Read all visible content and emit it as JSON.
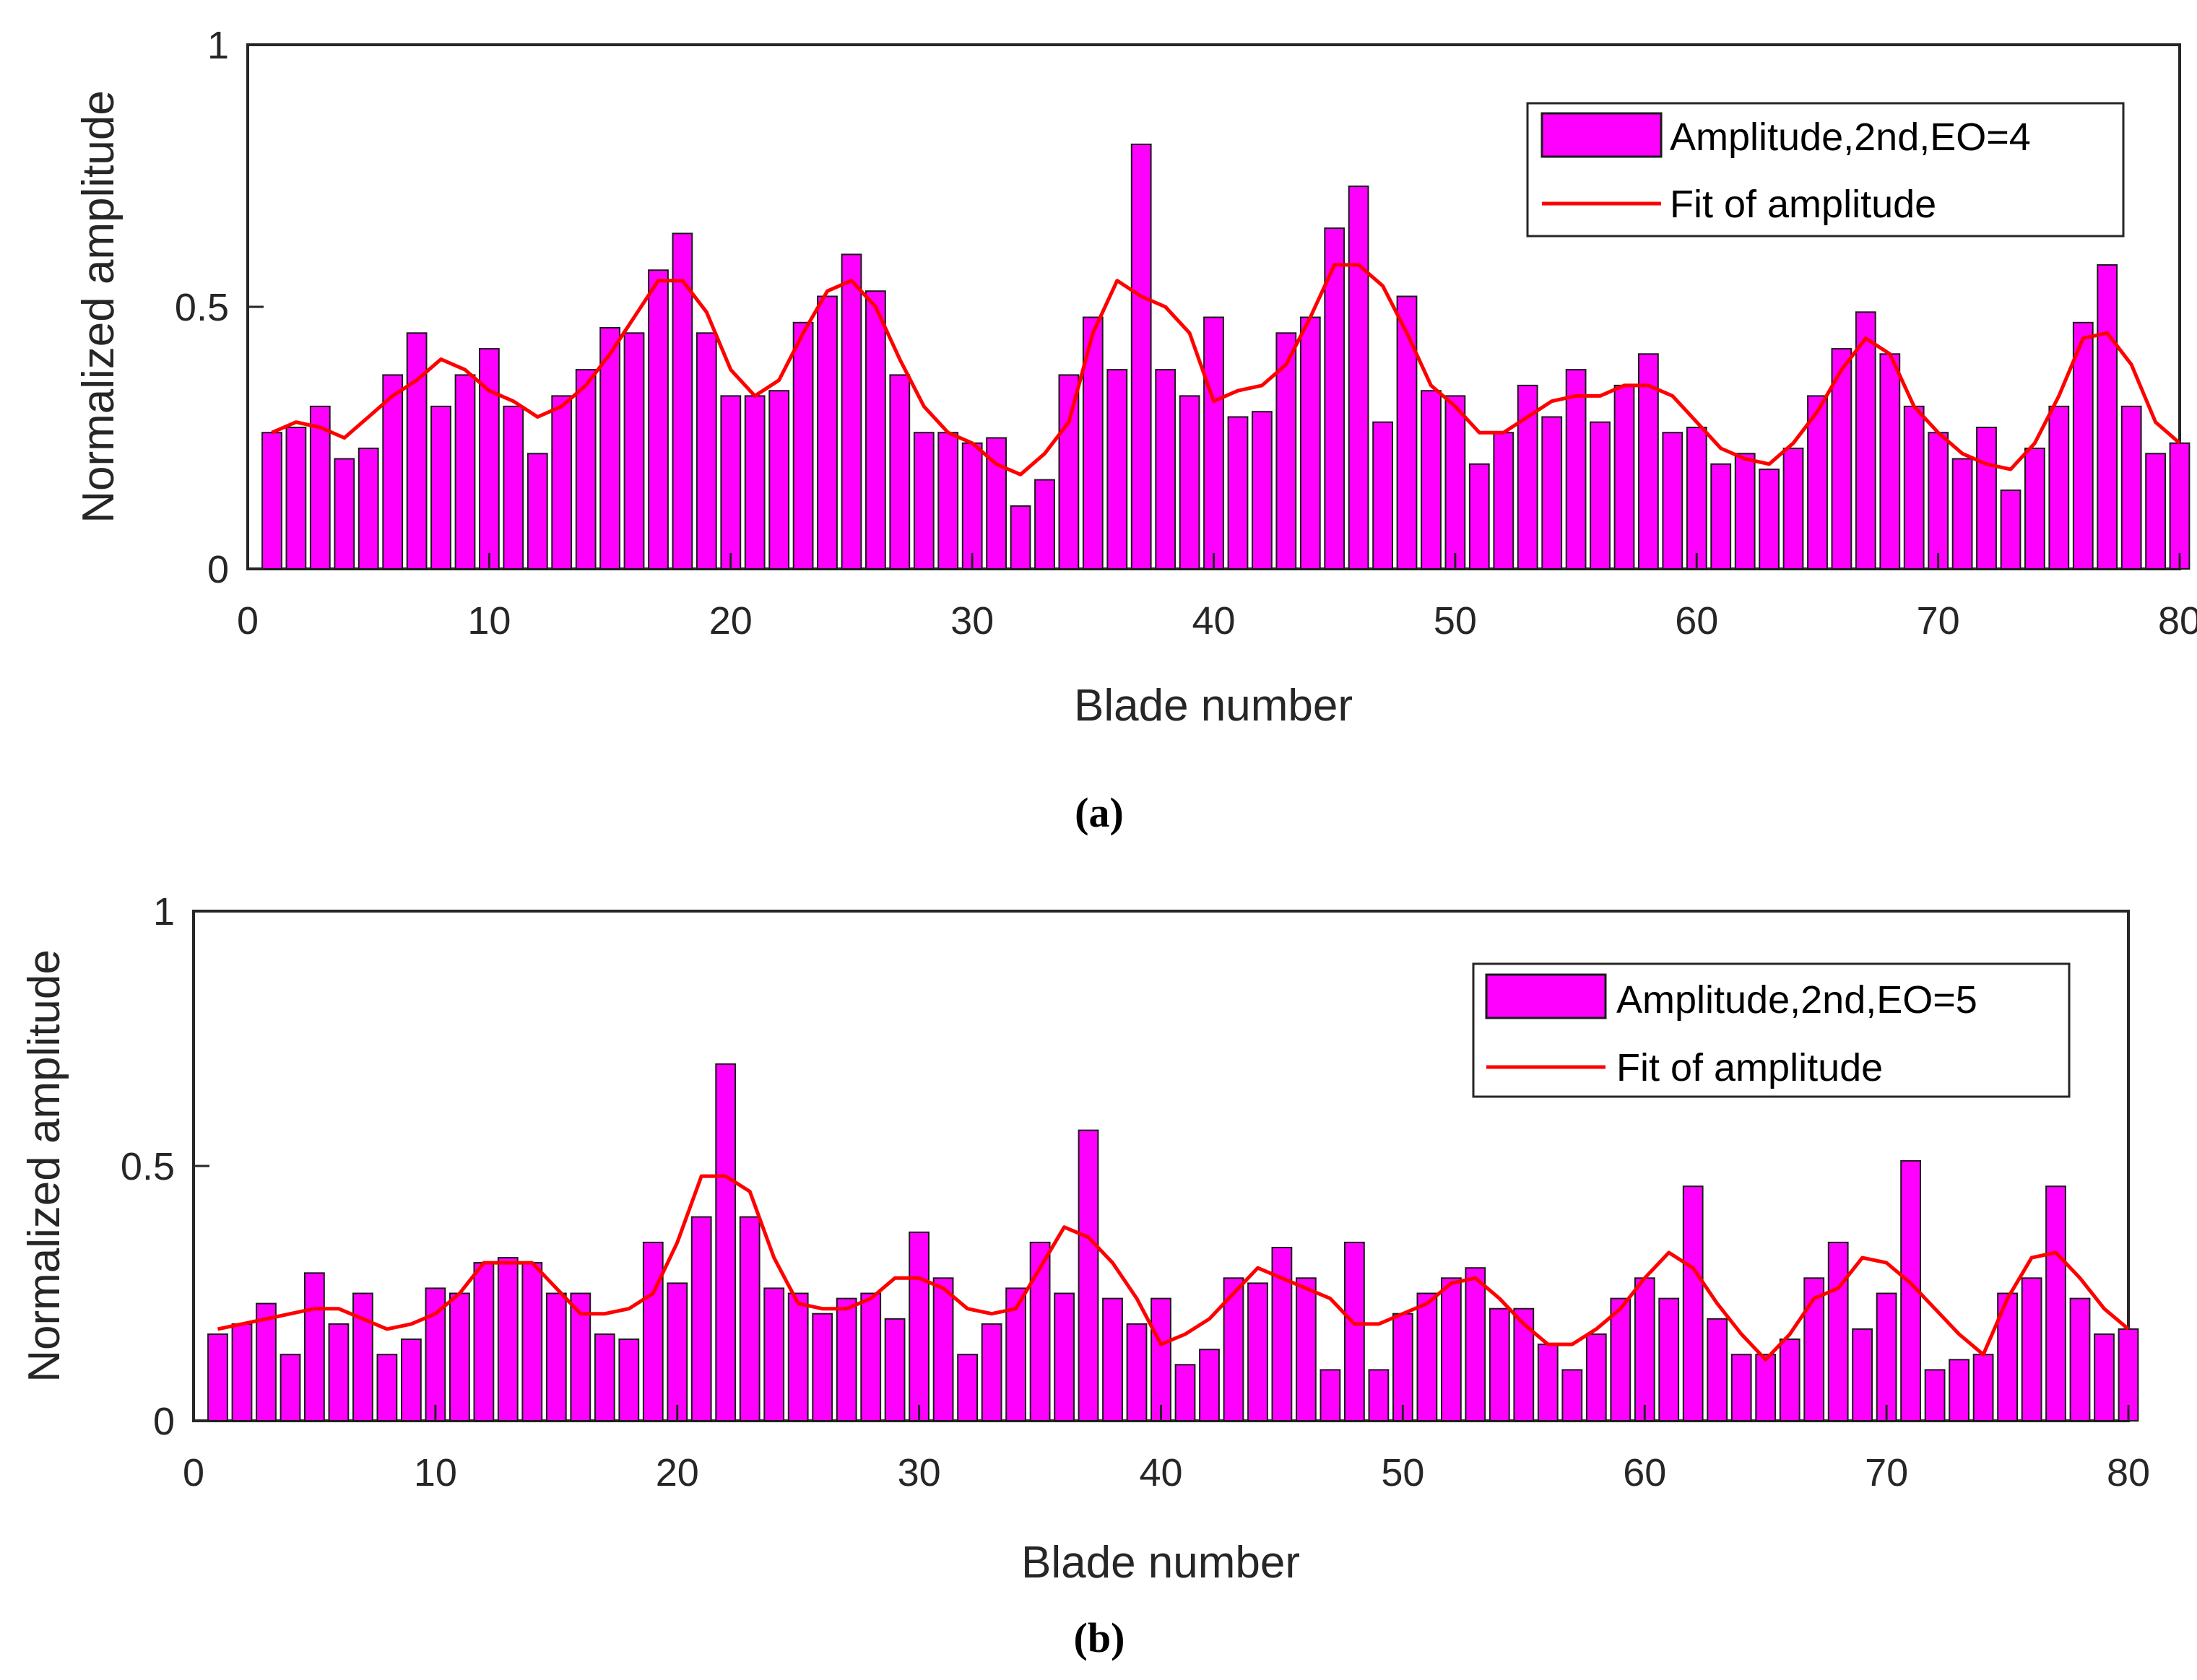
{
  "colors": {
    "bar_fill": "#ff00ff",
    "bar_edge": "#1a1a1a",
    "fit_line": "#ff0000",
    "axes": "#262626",
    "grid": "#e6e6e6"
  },
  "chart_data": [
    {
      "type": "bar",
      "panel": "(a)",
      "xlabel": "Blade number",
      "ylabel": "Normalized amplitude",
      "xlim": [
        0,
        80
      ],
      "ylim": [
        0,
        1
      ],
      "xticks": [
        "0",
        "10",
        "20",
        "30",
        "40",
        "50",
        "60",
        "70",
        "80"
      ],
      "yticks": [
        "0",
        "0.5",
        "1"
      ],
      "legend": {
        "bar_label": "Amplitude,2nd,EO=4",
        "line_label": "Fit of amplitude",
        "placement": "top-right"
      },
      "x": [
        1,
        2,
        3,
        4,
        5,
        6,
        7,
        8,
        9,
        10,
        11,
        12,
        13,
        14,
        15,
        16,
        17,
        18,
        19,
        20,
        21,
        22,
        23,
        24,
        25,
        26,
        27,
        28,
        29,
        30,
        31,
        32,
        33,
        34,
        35,
        36,
        37,
        38,
        39,
        40,
        41,
        42,
        43,
        44,
        45,
        46,
        47,
        48,
        49,
        50,
        51,
        52,
        53,
        54,
        55,
        56,
        57,
        58,
        59,
        60,
        61,
        62,
        63,
        64,
        65,
        66,
        67,
        68,
        69,
        70,
        71,
        72,
        73,
        74,
        75,
        76,
        77,
        78,
        79,
        80
      ],
      "series": [
        {
          "name": "Amplitude,2nd,EO=4",
          "kind": "bar",
          "values": [
            0.26,
            0.27,
            0.31,
            0.21,
            0.23,
            0.37,
            0.45,
            0.31,
            0.37,
            0.42,
            0.31,
            0.22,
            0.33,
            0.38,
            0.46,
            0.45,
            0.57,
            0.64,
            0.45,
            0.33,
            0.33,
            0.34,
            0.47,
            0.52,
            0.6,
            0.53,
            0.37,
            0.26,
            0.26,
            0.24,
            0.25,
            0.12,
            0.17,
            0.37,
            0.48,
            0.38,
            0.81,
            0.38,
            0.33,
            0.48,
            0.29,
            0.3,
            0.45,
            0.48,
            0.65,
            0.73,
            0.28,
            0.52,
            0.34,
            0.33,
            0.2,
            0.26,
            0.35,
            0.29,
            0.38,
            0.28,
            0.35,
            0.41,
            0.26,
            0.27,
            0.2,
            0.22,
            0.19,
            0.23,
            0.33,
            0.42,
            0.49,
            0.41,
            0.31,
            0.26,
            0.21,
            0.27,
            0.15,
            0.23,
            0.31,
            0.47,
            0.58,
            0.31,
            0.22,
            0.24
          ]
        },
        {
          "name": "Fit of amplitude",
          "kind": "line",
          "values": [
            0.26,
            0.28,
            0.27,
            0.25,
            0.29,
            0.33,
            0.36,
            0.4,
            0.38,
            0.34,
            0.32,
            0.29,
            0.31,
            0.35,
            0.41,
            0.48,
            0.55,
            0.55,
            0.49,
            0.38,
            0.33,
            0.36,
            0.45,
            0.53,
            0.55,
            0.5,
            0.4,
            0.31,
            0.26,
            0.24,
            0.2,
            0.18,
            0.22,
            0.28,
            0.45,
            0.55,
            0.52,
            0.5,
            0.45,
            0.32,
            0.34,
            0.35,
            0.39,
            0.48,
            0.58,
            0.58,
            0.54,
            0.45,
            0.35,
            0.31,
            0.26,
            0.26,
            0.29,
            0.32,
            0.33,
            0.33,
            0.35,
            0.35,
            0.33,
            0.28,
            0.23,
            0.21,
            0.2,
            0.24,
            0.3,
            0.38,
            0.44,
            0.41,
            0.31,
            0.26,
            0.22,
            0.2,
            0.19,
            0.24,
            0.33,
            0.44,
            0.45,
            0.39,
            0.28,
            0.24
          ]
        }
      ]
    },
    {
      "type": "bar",
      "panel": "(b)",
      "xlabel": "Blade number",
      "ylabel": "Normalized amplitude",
      "xlim": [
        0,
        80
      ],
      "ylim": [
        0,
        1
      ],
      "xticks": [
        "0",
        "10",
        "20",
        "30",
        "40",
        "50",
        "60",
        "70",
        "80"
      ],
      "yticks": [
        "0",
        "0.5",
        "1"
      ],
      "legend": {
        "bar_label": "Amplitude,2nd,EO=5",
        "line_label": "Fit of amplitude",
        "placement": "top-right"
      },
      "x": [
        1,
        2,
        3,
        4,
        5,
        6,
        7,
        8,
        9,
        10,
        11,
        12,
        13,
        14,
        15,
        16,
        17,
        18,
        19,
        20,
        21,
        22,
        23,
        24,
        25,
        26,
        27,
        28,
        29,
        30,
        31,
        32,
        33,
        34,
        35,
        36,
        37,
        38,
        39,
        40,
        41,
        42,
        43,
        44,
        45,
        46,
        47,
        48,
        49,
        50,
        51,
        52,
        53,
        54,
        55,
        56,
        57,
        58,
        59,
        60,
        61,
        62,
        63,
        64,
        65,
        66,
        67,
        68,
        69,
        70,
        71,
        72,
        73,
        74,
        75,
        76,
        77,
        78,
        79,
        80
      ],
      "series": [
        {
          "name": "Amplitude,2nd,EO=5",
          "kind": "bar",
          "values": [
            0.17,
            0.19,
            0.23,
            0.13,
            0.29,
            0.19,
            0.25,
            0.13,
            0.16,
            0.26,
            0.25,
            0.31,
            0.32,
            0.31,
            0.25,
            0.25,
            0.17,
            0.16,
            0.35,
            0.27,
            0.4,
            0.7,
            0.4,
            0.26,
            0.25,
            0.21,
            0.24,
            0.25,
            0.2,
            0.37,
            0.28,
            0.13,
            0.19,
            0.26,
            0.35,
            0.25,
            0.57,
            0.24,
            0.19,
            0.24,
            0.11,
            0.14,
            0.28,
            0.27,
            0.34,
            0.28,
            0.1,
            0.35,
            0.1,
            0.21,
            0.25,
            0.28,
            0.3,
            0.22,
            0.22,
            0.15,
            0.1,
            0.17,
            0.24,
            0.28,
            0.24,
            0.46,
            0.2,
            0.13,
            0.13,
            0.16,
            0.28,
            0.35,
            0.18,
            0.25,
            0.51,
            0.1,
            0.12,
            0.13,
            0.25,
            0.28,
            0.46,
            0.24,
            0.17,
            0.18
          ]
        },
        {
          "name": "Fit of amplitude",
          "kind": "line",
          "values": [
            0.18,
            0.19,
            0.2,
            0.21,
            0.22,
            0.22,
            0.2,
            0.18,
            0.19,
            0.21,
            0.25,
            0.31,
            0.31,
            0.31,
            0.26,
            0.21,
            0.21,
            0.22,
            0.25,
            0.35,
            0.48,
            0.48,
            0.45,
            0.32,
            0.23,
            0.22,
            0.22,
            0.24,
            0.28,
            0.28,
            0.26,
            0.22,
            0.21,
            0.22,
            0.3,
            0.38,
            0.36,
            0.31,
            0.24,
            0.15,
            0.17,
            0.2,
            0.25,
            0.3,
            0.28,
            0.26,
            0.24,
            0.19,
            0.19,
            0.21,
            0.23,
            0.27,
            0.28,
            0.24,
            0.19,
            0.15,
            0.15,
            0.18,
            0.22,
            0.28,
            0.33,
            0.3,
            0.23,
            0.17,
            0.12,
            0.17,
            0.24,
            0.26,
            0.32,
            0.31,
            0.27,
            0.22,
            0.17,
            0.13,
            0.24,
            0.32,
            0.33,
            0.28,
            0.22,
            0.18
          ]
        }
      ]
    }
  ]
}
